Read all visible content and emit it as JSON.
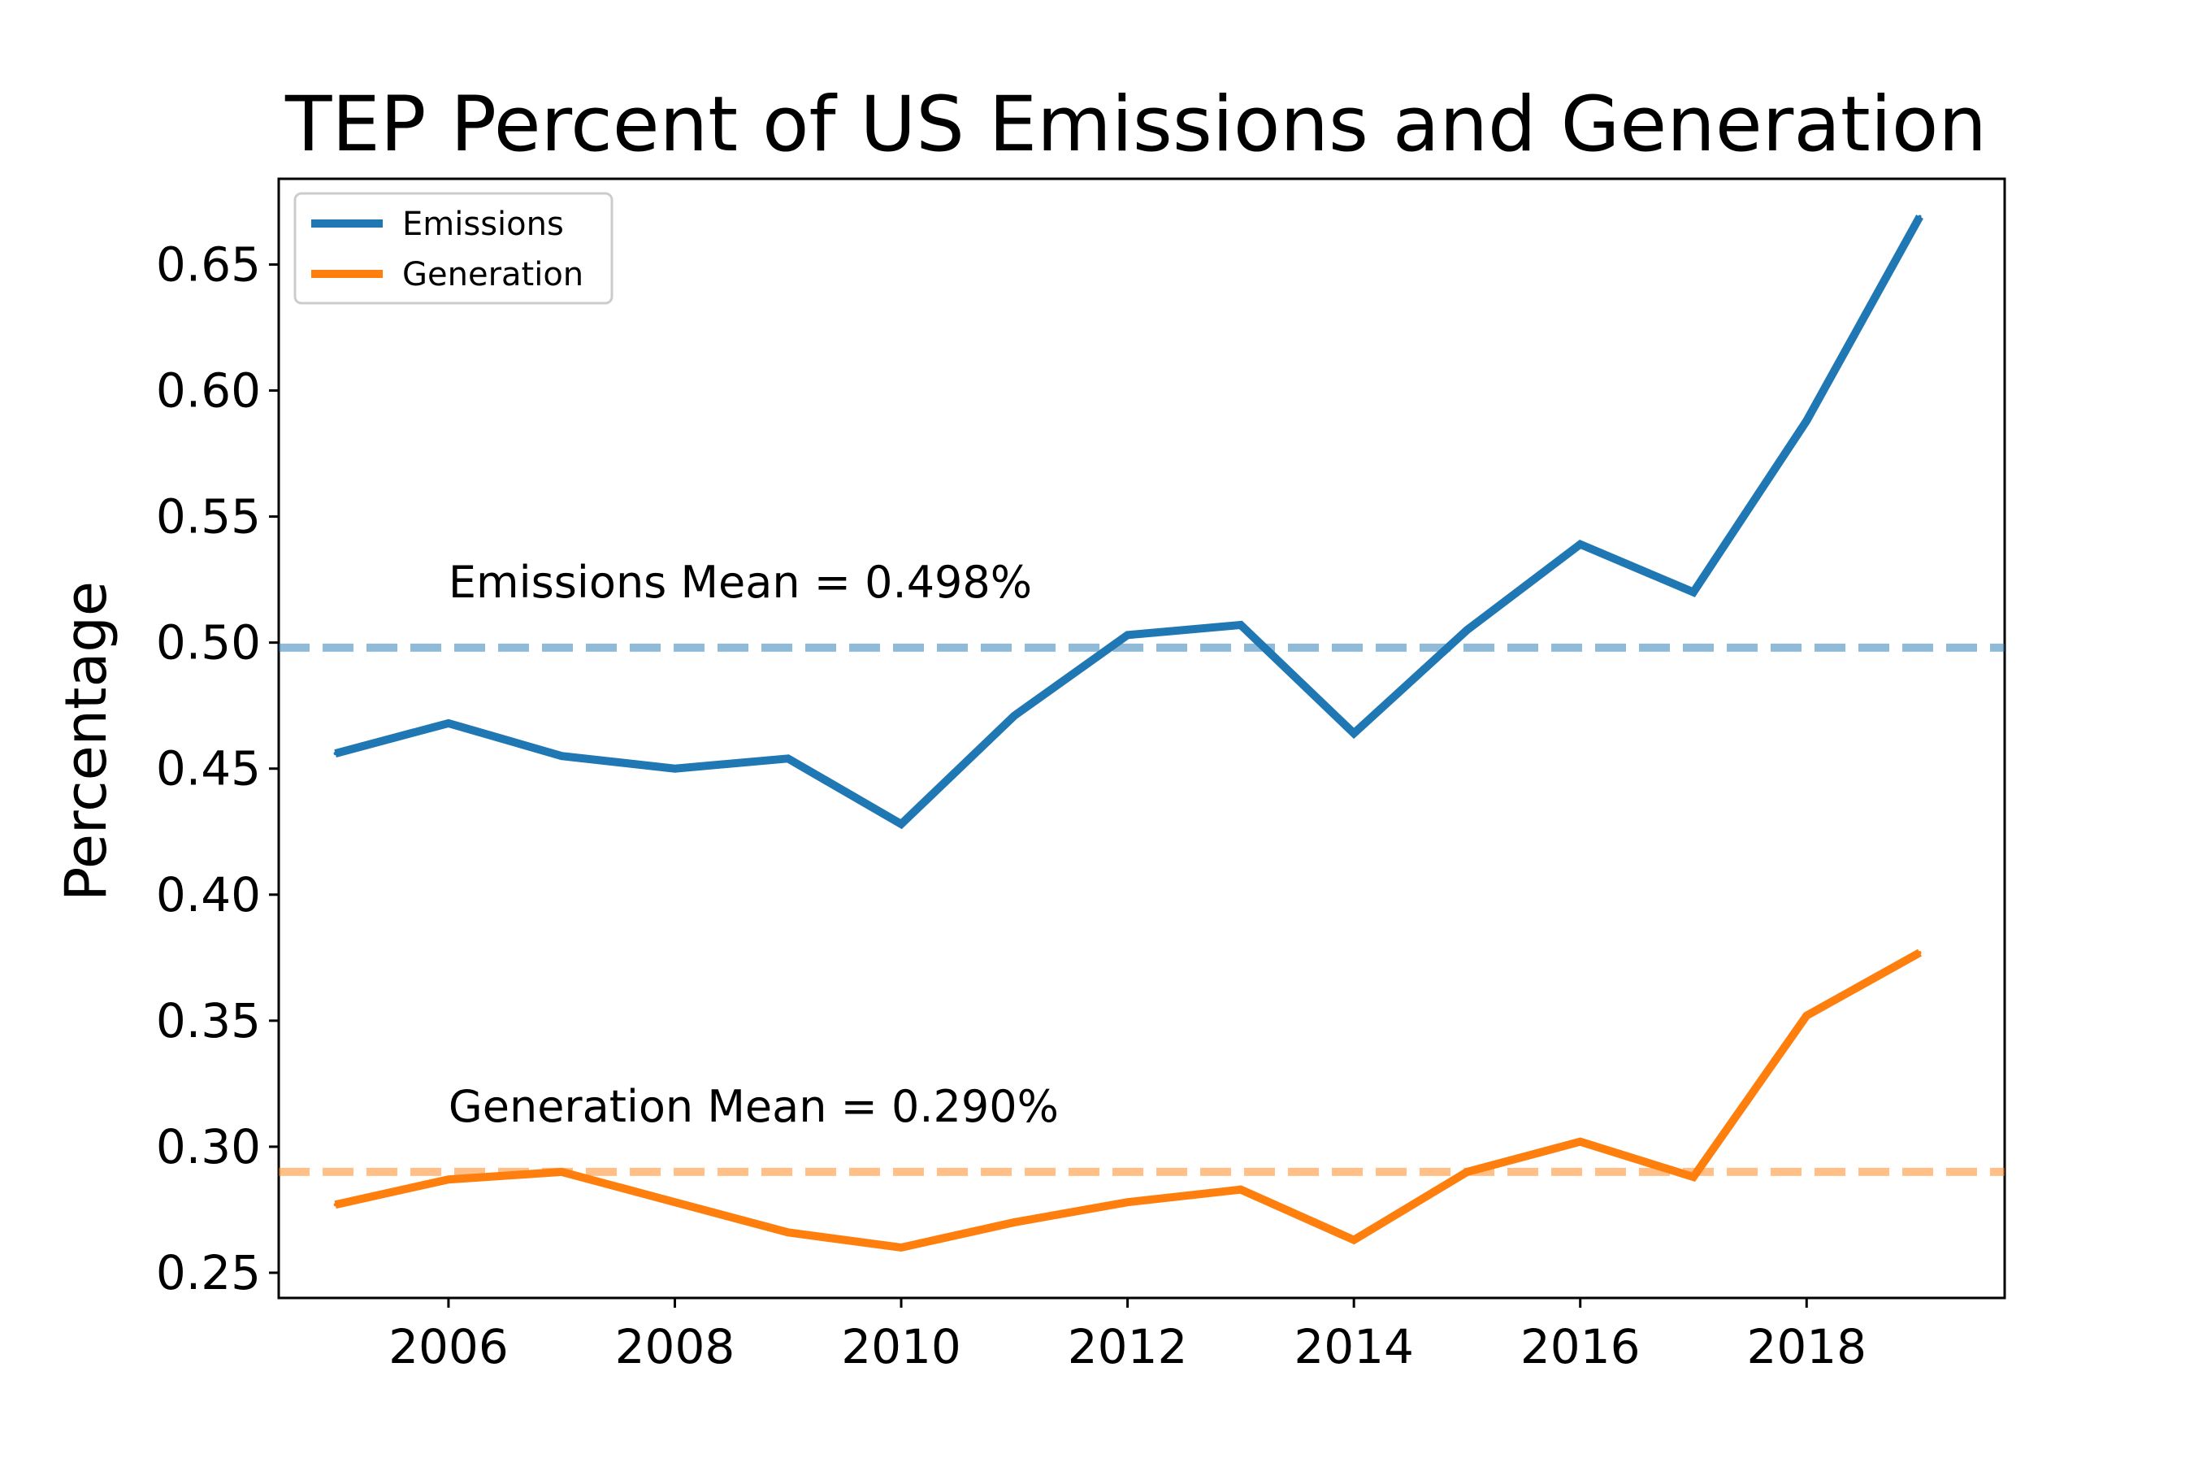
{
  "chart_data": {
    "type": "line",
    "title": "TEP Percent of US Emissions and Generation",
    "xlabel": "",
    "ylabel": "Percentage",
    "xlim": [
      2004.5,
      2019.75
    ],
    "ylim": [
      0.24,
      0.684
    ],
    "x_ticks": [
      2006,
      2008,
      2010,
      2012,
      2014,
      2016,
      2018
    ],
    "y_ticks": [
      0.25,
      0.3,
      0.35,
      0.4,
      0.45,
      0.5,
      0.55,
      0.6,
      0.65
    ],
    "y_tick_labels": [
      "0.25",
      "0.30",
      "0.35",
      "0.40",
      "0.45",
      "0.50",
      "0.55",
      "0.60",
      "0.65"
    ],
    "grid": false,
    "legend_position": "upper-left",
    "x": [
      2005,
      2006,
      2007,
      2008,
      2009,
      2010,
      2011,
      2012,
      2013,
      2014,
      2015,
      2016,
      2017,
      2018,
      2019
    ],
    "series": [
      {
        "name": "Emissions",
        "color": "#1f77b4",
        "values": [
          0.456,
          0.468,
          0.455,
          0.45,
          0.454,
          0.428,
          0.471,
          0.503,
          0.507,
          0.464,
          0.505,
          0.539,
          0.52,
          0.588,
          0.669
        ]
      },
      {
        "name": "Generation",
        "color": "#ff7f0e",
        "values": [
          0.277,
          0.287,
          0.29,
          0.278,
          0.266,
          0.26,
          0.27,
          0.278,
          0.283,
          0.263,
          0.29,
          0.302,
          0.288,
          0.352,
          0.377
        ]
      }
    ],
    "reference_lines": [
      {
        "label": "Emissions Mean = 0.498%",
        "value": 0.498,
        "color": "#1f77b4"
      },
      {
        "label": "Generation Mean = 0.290%",
        "value": 0.29,
        "color": "#ff7f0e"
      }
    ]
  }
}
